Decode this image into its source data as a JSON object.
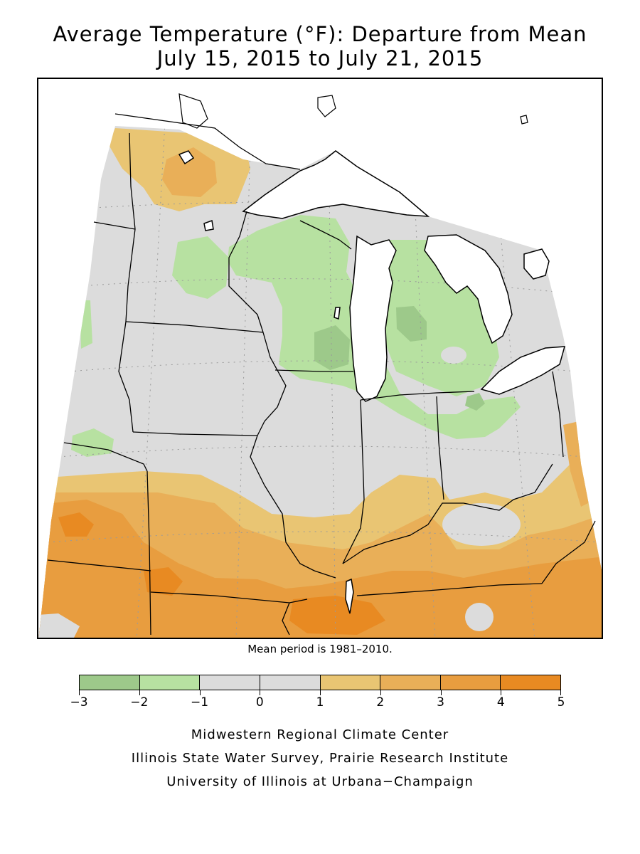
{
  "title": {
    "line1": "Average Temperature (°F): Departure from Mean",
    "line2": "July 15, 2015 to July 21, 2015"
  },
  "mean_period_note": "Mean period is 1981–2010.",
  "legend": {
    "bins": [
      {
        "from": -3,
        "to": -2,
        "color": "#9dc98a"
      },
      {
        "from": -2,
        "to": -1,
        "color": "#b7e1a1"
      },
      {
        "from": -1,
        "to": 0,
        "color": "#dcdcdc"
      },
      {
        "from": 0,
        "to": 1,
        "color": "#dcdcdc"
      },
      {
        "from": 1,
        "to": 2,
        "color": "#e9c573"
      },
      {
        "from": 2,
        "to": 3,
        "color": "#e9af58"
      },
      {
        "from": 3,
        "to": 4,
        "color": "#e89d3f"
      },
      {
        "from": 4,
        "to": 5,
        "color": "#e88a22"
      }
    ],
    "tick_labels": [
      "−3",
      "−2",
      "−1",
      "0",
      "1",
      "2",
      "3",
      "4",
      "5"
    ]
  },
  "credits": {
    "line1": "Midwestern Regional Climate Center",
    "line2": "Illinois State Water Survey, Prairie Research Institute",
    "line3": "University of Illinois at Urbana−Champaign"
  },
  "map": {
    "region": "Midwestern United States",
    "background_color": "#dcdcdc",
    "lake_color": "#ffffff",
    "border_color": "#000000"
  }
}
